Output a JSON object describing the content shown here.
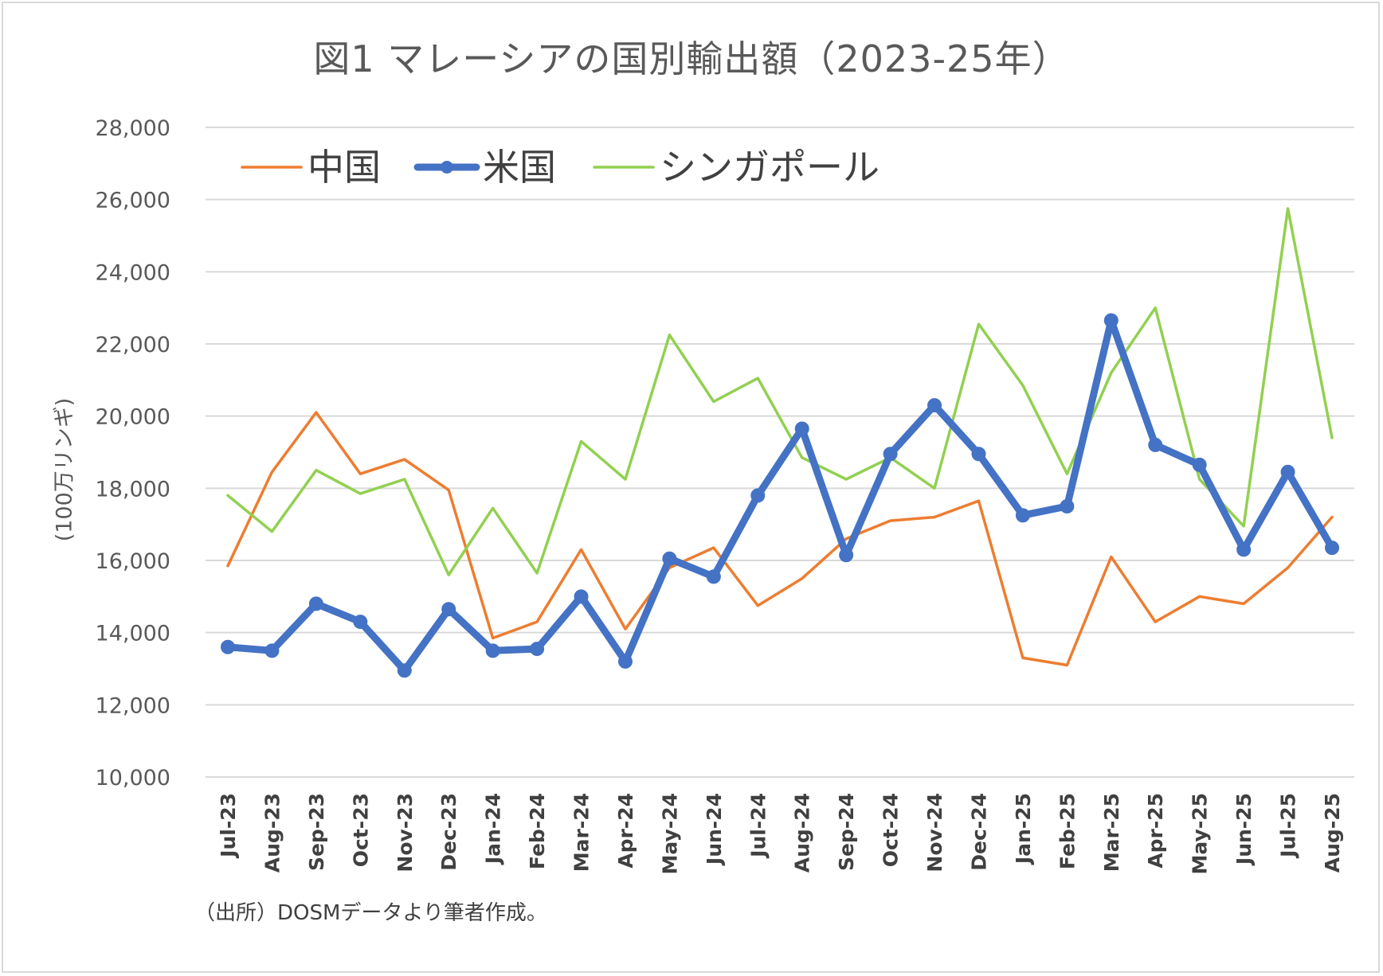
{
  "title": "図1 マレーシアの国別輸出額（2023-25年）",
  "ylabel": "(100万リンギ)",
  "source": "（出所）DOSMデータより筆者作成。",
  "chart_data": {
    "type": "line",
    "title": "図1 マレーシアの国別輸出額（2023-25年）",
    "xlabel": "",
    "ylabel": "(100万リンギ)",
    "ylim": [
      10000,
      28000
    ],
    "yticks": [
      10000,
      12000,
      14000,
      16000,
      18000,
      20000,
      22000,
      24000,
      26000,
      28000
    ],
    "ytick_labels": [
      "10,000",
      "12,000",
      "14,000",
      "16,000",
      "18,000",
      "20,000",
      "22,000",
      "24,000",
      "26,000",
      "28,000"
    ],
    "grid": true,
    "legend": "top-left",
    "categories": [
      "Jul-23",
      "Aug-23",
      "Sep-23",
      "Oct-23",
      "Nov-23",
      "Dec-23",
      "Jan-24",
      "Feb-24",
      "Mar-24",
      "Apr-24",
      "May-24",
      "Jun-24",
      "Jul-24",
      "Aug-24",
      "Sep-24",
      "Oct-24",
      "Nov-24",
      "Dec-24",
      "Jan-25",
      "Feb-25",
      "Mar-25",
      "Apr-25",
      "May-25",
      "Jun-25",
      "Jul-25",
      "Aug-25"
    ],
    "series": [
      {
        "name": "中国",
        "color": "#ed7d31",
        "marker": false,
        "width": "thin",
        "values": [
          15850,
          18450,
          20100,
          18400,
          18800,
          17950,
          13850,
          14300,
          16300,
          14100,
          15800,
          16350,
          14750,
          15500,
          16600,
          17100,
          17200,
          17650,
          13300,
          13100,
          16100,
          14300,
          15000,
          14800,
          15800,
          17200
        ]
      },
      {
        "name": "米国",
        "color": "#4472c4",
        "marker": true,
        "width": "thick",
        "values": [
          13600,
          13500,
          14800,
          14300,
          12950,
          14650,
          13500,
          13550,
          15000,
          13200,
          16050,
          15550,
          17800,
          19650,
          16150,
          18950,
          20300,
          18950,
          17250,
          17500,
          22650,
          19200,
          18650,
          16300,
          18450,
          16350
        ]
      },
      {
        "name": "シンガポール",
        "color": "#92d050",
        "marker": false,
        "width": "thin",
        "values": [
          17800,
          16800,
          18500,
          17850,
          18250,
          15600,
          17450,
          15650,
          19300,
          18250,
          22250,
          20400,
          21050,
          18850,
          18250,
          18850,
          18000,
          22550,
          20850,
          18400,
          21200,
          23000,
          18250,
          16950,
          25750,
          19400
        ]
      }
    ]
  }
}
